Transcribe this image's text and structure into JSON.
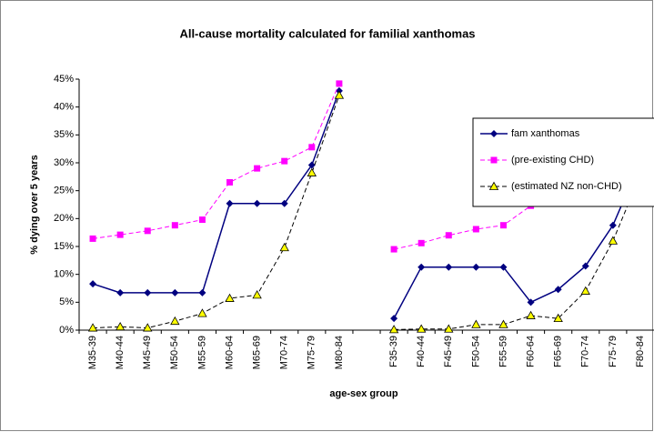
{
  "chart_data": {
    "type": "line",
    "title": "All-cause mortality calculated for familial xanthomas",
    "x_label": "age-sex group",
    "y_label": "% dying over 5 years",
    "categories": [
      "M35-39",
      "M40-44",
      "M45-49",
      "M50-54",
      "M55-59",
      "M60-64",
      "M65-69",
      "M70-74",
      "M75-79",
      "M80-84",
      null,
      "F35-39",
      "F40-44",
      "F45-49",
      "F50-54",
      "F55-59",
      "F60-64",
      "F65-69",
      "F70-74",
      "F75-79",
      "F80-84"
    ],
    "series": [
      {
        "name": "fam xanthomas",
        "color": "#000080",
        "marker": "diamond",
        "dash": false,
        "values": [
          8.3,
          6.7,
          6.7,
          6.7,
          6.7,
          22.7,
          22.7,
          22.7,
          29.6,
          42.9,
          null,
          2.1,
          11.3,
          11.3,
          11.3,
          11.3,
          5.0,
          7.3,
          11.5,
          18.8,
          30.2
        ]
      },
      {
        "name": "(pre-existing CHD)",
        "color": "#ff00ff",
        "marker": "square",
        "dash": true,
        "values": [
          16.4,
          17.1,
          17.8,
          18.8,
          19.8,
          26.5,
          29.0,
          30.3,
          32.8,
          44.2,
          null,
          14.5,
          15.6,
          17.0,
          18.1,
          18.8,
          22.3,
          24.5,
          25.5,
          27.5,
          34.0
        ]
      },
      {
        "name": "(estimated NZ non-CHD)",
        "color": "#000000",
        "marker": "triangle",
        "marker_fill": "#ffff00",
        "dash": true,
        "values": [
          0.4,
          0.6,
          0.4,
          1.6,
          3.0,
          5.7,
          6.3,
          14.8,
          28.2,
          42.1,
          null,
          0.1,
          0.2,
          0.2,
          1.0,
          1.0,
          2.6,
          2.1,
          7.0,
          16.0,
          27.8
        ]
      }
    ],
    "ylim": [
      0,
      45
    ],
    "yticks": [
      {
        "value": 0,
        "label": "0%"
      },
      {
        "value": 5,
        "label": "5%"
      },
      {
        "value": 10,
        "label": "10%"
      },
      {
        "value": 15,
        "label": "15%"
      },
      {
        "value": 20,
        "label": "20%"
      },
      {
        "value": 25,
        "label": "25%"
      },
      {
        "value": 30,
        "label": "30%"
      },
      {
        "value": 35,
        "label": "35%"
      },
      {
        "value": 40,
        "label": "40%"
      },
      {
        "value": 45,
        "label": "45%"
      }
    ],
    "grid": false,
    "legend": "right"
  }
}
